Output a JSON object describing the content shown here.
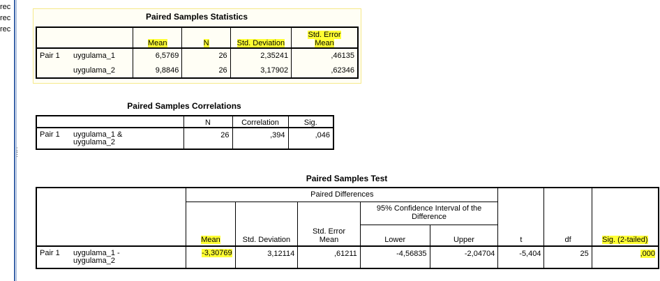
{
  "left_pane": {
    "lines": [
      "rec",
      "rec",
      "rec"
    ]
  },
  "stats": {
    "title": "Paired Samples Statistics",
    "headers": {
      "mean": "Mean",
      "n": "N",
      "std_dev": "Std. Deviation",
      "se_mean_1": "Std. Error",
      "se_mean_2": "Mean"
    },
    "pair_label": "Pair 1",
    "rows": [
      {
        "name": "uygulama_1",
        "mean": "6,5769",
        "n": "26",
        "std_dev": "2,35241",
        "se_mean": ",46135"
      },
      {
        "name": "uygulama_2",
        "mean": "9,8846",
        "n": "26",
        "std_dev": "3,17902",
        "se_mean": ",62346"
      }
    ]
  },
  "corr": {
    "title": "Paired Samples Correlations",
    "headers": {
      "n": "N",
      "correlation": "Correlation",
      "sig": "Sig."
    },
    "pair_label": "Pair 1",
    "name_1": "uygulama_1 &",
    "name_2": "uygulama_2",
    "n": "26",
    "correlation": ",394",
    "sig": ",046"
  },
  "test": {
    "title": "Paired Samples Test",
    "headers": {
      "paired_differences": "Paired Differences",
      "ci_1": "95% Confidence Interval of the",
      "ci_2": "Difference",
      "mean": "Mean",
      "std_dev": "Std. Deviation",
      "se_mean_1": "Std. Error",
      "se_mean_2": "Mean",
      "lower": "Lower",
      "upper": "Upper",
      "t": "t",
      "df": "df",
      "sig": "Sig. (2-tailed)"
    },
    "pair_label": "Pair 1",
    "name_1": "uygulama_1 -",
    "name_2": "uygulama_2",
    "mean": "-3,30769",
    "std_dev": "3,12114",
    "se_mean": ",61211",
    "lower": "-4,56835",
    "upper": "-2,04704",
    "t": "-5,404",
    "df": "25",
    "sig": ",000"
  },
  "colors": {
    "highlight": "#ffff33",
    "pane_border": "#3b64a8"
  }
}
